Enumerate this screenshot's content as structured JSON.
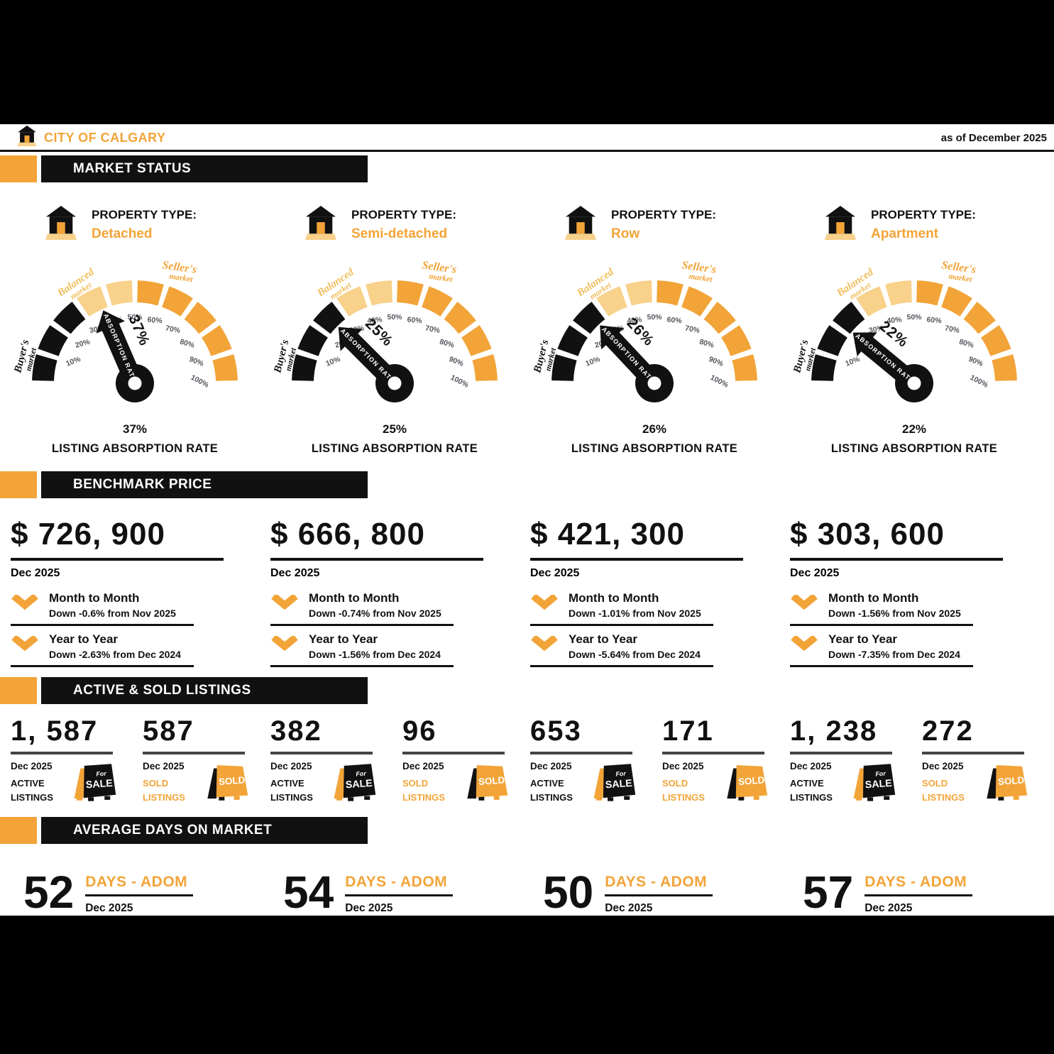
{
  "header": {
    "brand": "CITY OF CALGARY",
    "as_of": "as of December 2025"
  },
  "section_titles": {
    "market_status": "MARKET STATUS",
    "benchmark_price": "BENCHMARK PRICE",
    "active_sold": "ACTIVE & SOLD LISTINGS",
    "adom": "AVERAGE DAYS ON MARKET"
  },
  "labels": {
    "property_type": "PROPERTY TYPE:",
    "absorption_caption": "LISTING ABSORPTION RATE",
    "needle": "ABSORPTION RATE",
    "sale_sign_line1": "For",
    "sale_sign_line2": "SALE",
    "sold_sign": "SOLD"
  },
  "colors": {
    "accent": "#F2A438",
    "pale": "#F8D18A",
    "ink": "#111111",
    "tick": "#55555e"
  },
  "columns": [
    {
      "property_type": "Detached",
      "rate_display": "37%",
      "price": "$ 726, 900",
      "price_date": "Dec 2025",
      "month_to_month": {
        "title": "Month to Month",
        "detail": "Down -0.6% from Nov 2025"
      },
      "year_to_year": {
        "title": "Year to Year",
        "detail": "Down -2.63% from Dec 2024"
      },
      "active": {
        "value": "1, 587",
        "date": "Dec 2025",
        "label1": "ACTIVE",
        "label2": "LISTINGS"
      },
      "sold": {
        "value": "587",
        "date": "Dec 2025",
        "label1": "SOLD",
        "label2": "LISTINGS"
      },
      "adom": {
        "value": "52",
        "label": "DAYS - ADOM",
        "date": "Dec 2025"
      }
    },
    {
      "property_type": "Semi-detached",
      "rate_display": "25%",
      "price": "$ 666, 800",
      "price_date": "Dec 2025",
      "month_to_month": {
        "title": "Month to Month",
        "detail": "Down -0.74% from Nov 2025"
      },
      "year_to_year": {
        "title": "Year to Year",
        "detail": "Down -1.56% from Dec 2024"
      },
      "active": {
        "value": "382",
        "date": "Dec 2025",
        "label1": "ACTIVE",
        "label2": "LISTINGS"
      },
      "sold": {
        "value": "96",
        "date": "Dec 2025",
        "label1": "SOLD",
        "label2": "LISTINGS"
      },
      "adom": {
        "value": "54",
        "label": "DAYS - ADOM",
        "date": "Dec 2025"
      }
    },
    {
      "property_type": "Row",
      "rate_display": "26%",
      "price": "$ 421, 300",
      "price_date": "Dec 2025",
      "month_to_month": {
        "title": "Month to Month",
        "detail": "Down -1.01% from Nov 2025"
      },
      "year_to_year": {
        "title": "Year to Year",
        "detail": "Down -5.64% from Dec 2024"
      },
      "active": {
        "value": "653",
        "date": "Dec 2025",
        "label1": "ACTIVE",
        "label2": "LISTINGS"
      },
      "sold": {
        "value": "171",
        "date": "Dec 2025",
        "label1": "SOLD",
        "label2": "LISTINGS"
      },
      "adom": {
        "value": "50",
        "label": "DAYS - ADOM",
        "date": "Dec 2025"
      }
    },
    {
      "property_type": "Apartment",
      "rate_display": "22%",
      "price": "$ 303, 600",
      "price_date": "Dec 2025",
      "month_to_month": {
        "title": "Month to Month",
        "detail": "Down -1.56% from Nov 2025"
      },
      "year_to_year": {
        "title": "Year to Year",
        "detail": "Down -7.35% from Dec 2024"
      },
      "active": {
        "value": "1, 238",
        "date": "Dec 2025",
        "label1": "ACTIVE",
        "label2": "LISTINGS"
      },
      "sold": {
        "value": "272",
        "date": "Dec 2025",
        "label1": "SOLD",
        "label2": "LISTINGS"
      },
      "adom": {
        "value": "57",
        "label": "DAYS - ADOM",
        "date": "Dec 2025"
      }
    }
  ],
  "chart_data": {
    "type": "gauge",
    "unit": "%",
    "range": [
      0,
      100
    ],
    "tick_labels": [
      "10%",
      "20%",
      "30%",
      "40%",
      "50%",
      "60%",
      "70%",
      "80%",
      "90%",
      "100%"
    ],
    "bands": [
      {
        "from": 0,
        "to": 30,
        "label": "Buyer's market",
        "color": "#111111",
        "label_color": "#111111"
      },
      {
        "from": 30,
        "to": 50,
        "label": "Balanced market",
        "color": "#F8D18A",
        "label_color": "#F0BE5C"
      },
      {
        "from": 50,
        "to": 100,
        "label": "Seller's market",
        "color": "#F2A438",
        "label_color": "#F2A438"
      }
    ],
    "needle_label": "ABSORPTION RATE",
    "caption": "LISTING ABSORPTION RATE",
    "gauges": [
      {
        "property_type": "Detached",
        "absorption_rate_pct": 37
      },
      {
        "property_type": "Semi-detached",
        "absorption_rate_pct": 25
      },
      {
        "property_type": "Row",
        "absorption_rate_pct": 26
      },
      {
        "property_type": "Apartment",
        "absorption_rate_pct": 22
      }
    ]
  }
}
